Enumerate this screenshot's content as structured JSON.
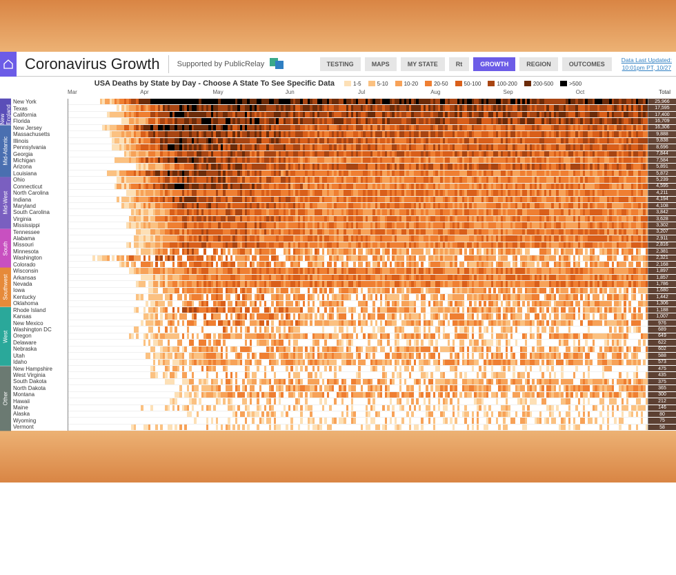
{
  "header": {
    "title": "Coronavirus Growth",
    "supported_by": "Supported by PublicRelay",
    "nav": [
      "TESTING",
      "MAPS",
      "MY STATE",
      "Rt",
      "GROWTH",
      "REGION",
      "OUTCOMES"
    ],
    "active_nav_index": 4,
    "updated_line1": "Data Last Updated:",
    "updated_line2": "10:01pm PT, 10/27"
  },
  "chart": {
    "title": "USA Deaths by State by Day - Choose A State To See Specific Data",
    "type": "heatmap",
    "months": [
      "Mar",
      "Apr",
      "May",
      "Jun",
      "Jul",
      "Aug",
      "Sep",
      "Oct"
    ],
    "totals_label": "Total",
    "legend": [
      {
        "label": "1-5",
        "color": "#fde0b6"
      },
      {
        "label": "5-10",
        "color": "#fbc181"
      },
      {
        "label": "10-20",
        "color": "#f7a258"
      },
      {
        "label": "20-50",
        "color": "#ef7f32"
      },
      {
        "label": "50-100",
        "color": "#d95f1a"
      },
      {
        "label": "100-200",
        "color": "#a84512"
      },
      {
        "label": "200-500",
        "color": "#6b2b09"
      },
      {
        "label": ">500",
        "color": "#000000"
      }
    ],
    "background_color": "#ffffff",
    "empty_color": "#ffffff",
    "gridline_color": "#888888",
    "row_border_color": "#f0f0f0",
    "cells_per_row": 240,
    "regions": [
      {
        "name": "New England",
        "color": "#5a4eb8",
        "rows": 4
      },
      {
        "name": "Mid-Atlantic",
        "color": "#4a6fb0",
        "rows": 8
      },
      {
        "name": "Mid-West",
        "color": "#7a5fc0",
        "rows": 8
      },
      {
        "name": "South",
        "color": "#c850c0",
        "rows": 6
      },
      {
        "name": "Southwest",
        "color": "#e68a3a",
        "rows": 6
      },
      {
        "name": "West",
        "color": "#2aa89a",
        "rows": 9
      },
      {
        "name": "Other",
        "color": "#6b7a72",
        "rows": 10
      }
    ],
    "states": [
      {
        "name": "New York",
        "total": "25,966",
        "peak": 8,
        "start": 12,
        "sustain": 6
      },
      {
        "name": "Texas",
        "total": "17,595",
        "peak": 6,
        "start": 20,
        "sustain": 5
      },
      {
        "name": "California",
        "total": "17,400",
        "peak": 6,
        "start": 16,
        "sustain": 5
      },
      {
        "name": "Florida",
        "total": "16,709",
        "peak": 6,
        "start": 22,
        "sustain": 5
      },
      {
        "name": "New Jersey",
        "total": "16,306",
        "peak": 7,
        "start": 14,
        "sustain": 4
      },
      {
        "name": "Massachusetts",
        "total": "9,888",
        "peak": 6,
        "start": 16,
        "sustain": 4
      },
      {
        "name": "Illinois",
        "total": "9,838",
        "peak": 6,
        "start": 18,
        "sustain": 4
      },
      {
        "name": "Pennsylvania",
        "total": "8,696",
        "peak": 6,
        "start": 18,
        "sustain": 4
      },
      {
        "name": "Georgia",
        "total": "7,844",
        "peak": 5,
        "start": 22,
        "sustain": 4
      },
      {
        "name": "Michigan",
        "total": "7,584",
        "peak": 6,
        "start": 18,
        "sustain": 3
      },
      {
        "name": "Arizona",
        "total": "5,891",
        "peak": 5,
        "start": 28,
        "sustain": 4
      },
      {
        "name": "Louisiana",
        "total": "5,872",
        "peak": 6,
        "start": 16,
        "sustain": 3
      },
      {
        "name": "Ohio",
        "total": "5,239",
        "peak": 5,
        "start": 20,
        "sustain": 3
      },
      {
        "name": "Connecticut",
        "total": "4,595",
        "peak": 6,
        "start": 18,
        "sustain": 3
      },
      {
        "name": "North Carolina",
        "total": "4,211",
        "peak": 4,
        "start": 24,
        "sustain": 3
      },
      {
        "name": "Indiana",
        "total": "4,194",
        "peak": 5,
        "start": 20,
        "sustain": 3
      },
      {
        "name": "Maryland",
        "total": "4,108",
        "peak": 5,
        "start": 22,
        "sustain": 3
      },
      {
        "name": "South Carolina",
        "total": "3,842",
        "peak": 4,
        "start": 26,
        "sustain": 3
      },
      {
        "name": "Virginia",
        "total": "3,628",
        "peak": 4,
        "start": 24,
        "sustain": 3
      },
      {
        "name": "Mississippi",
        "total": "3,302",
        "peak": 4,
        "start": 24,
        "sustain": 3
      },
      {
        "name": "Tennessee",
        "total": "3,207",
        "peak": 4,
        "start": 26,
        "sustain": 3
      },
      {
        "name": "Alabama",
        "total": "2,911",
        "peak": 4,
        "start": 26,
        "sustain": 3
      },
      {
        "name": "Missouri",
        "total": "2,816",
        "peak": 4,
        "start": 24,
        "sustain": 3
      },
      {
        "name": "Minnesota",
        "total": "2,381",
        "peak": 4,
        "start": 26,
        "sustain": 2
      },
      {
        "name": "Washington",
        "total": "2,321",
        "peak": 4,
        "start": 10,
        "sustain": 2
      },
      {
        "name": "Colorado",
        "total": "2,168",
        "peak": 4,
        "start": 20,
        "sustain": 2
      },
      {
        "name": "Wisconsin",
        "total": "1,897",
        "peak": 3,
        "start": 24,
        "sustain": 3
      },
      {
        "name": "Arkansas",
        "total": "1,857",
        "peak": 3,
        "start": 30,
        "sustain": 3
      },
      {
        "name": "Nevada",
        "total": "1,786",
        "peak": 3,
        "start": 28,
        "sustain": 3
      },
      {
        "name": "Iowa",
        "total": "1,680",
        "peak": 3,
        "start": 28,
        "sustain": 2
      },
      {
        "name": "Kentucky",
        "total": "1,442",
        "peak": 3,
        "start": 28,
        "sustain": 2
      },
      {
        "name": "Oklahoma",
        "total": "1,306",
        "peak": 3,
        "start": 30,
        "sustain": 2
      },
      {
        "name": "Rhode Island",
        "total": "1,188",
        "peak": 4,
        "start": 24,
        "sustain": 2
      },
      {
        "name": "Kansas",
        "total": "1,007",
        "peak": 3,
        "start": 30,
        "sustain": 2
      },
      {
        "name": "New Mexico",
        "total": "976",
        "peak": 3,
        "start": 30,
        "sustain": 2
      },
      {
        "name": "Washington DC",
        "total": "689",
        "peak": 3,
        "start": 26,
        "sustain": 1
      },
      {
        "name": "Oregon",
        "total": "649",
        "peak": 2,
        "start": 24,
        "sustain": 2
      },
      {
        "name": "Delaware",
        "total": "622",
        "peak": 3,
        "start": 26,
        "sustain": 1
      },
      {
        "name": "Nebraska",
        "total": "602",
        "peak": 2,
        "start": 32,
        "sustain": 2
      },
      {
        "name": "Utah",
        "total": "588",
        "peak": 2,
        "start": 32,
        "sustain": 2
      },
      {
        "name": "Idaho",
        "total": "573",
        "peak": 2,
        "start": 34,
        "sustain": 2
      },
      {
        "name": "New Hampshire",
        "total": "475",
        "peak": 2,
        "start": 28,
        "sustain": 1
      },
      {
        "name": "West Virginia",
        "total": "435",
        "peak": 2,
        "start": 34,
        "sustain": 1
      },
      {
        "name": "South Dakota",
        "total": "375",
        "peak": 2,
        "start": 40,
        "sustain": 2
      },
      {
        "name": "North Dakota",
        "total": "365",
        "peak": 2,
        "start": 42,
        "sustain": 2
      },
      {
        "name": "Montana",
        "total": "300",
        "peak": 2,
        "start": 44,
        "sustain": 2
      },
      {
        "name": "Hawaii",
        "total": "212",
        "peak": 1,
        "start": 40,
        "sustain": 1
      },
      {
        "name": "Maine",
        "total": "146",
        "peak": 1,
        "start": 30,
        "sustain": 1
      },
      {
        "name": "Alaska",
        "total": "80",
        "peak": 1,
        "start": 44,
        "sustain": 1
      },
      {
        "name": "Wyoming",
        "total": "75",
        "peak": 1,
        "start": 46,
        "sustain": 1
      },
      {
        "name": "Vermont",
        "total": "58",
        "peak": 1,
        "start": 24,
        "sustain": 0
      }
    ]
  }
}
